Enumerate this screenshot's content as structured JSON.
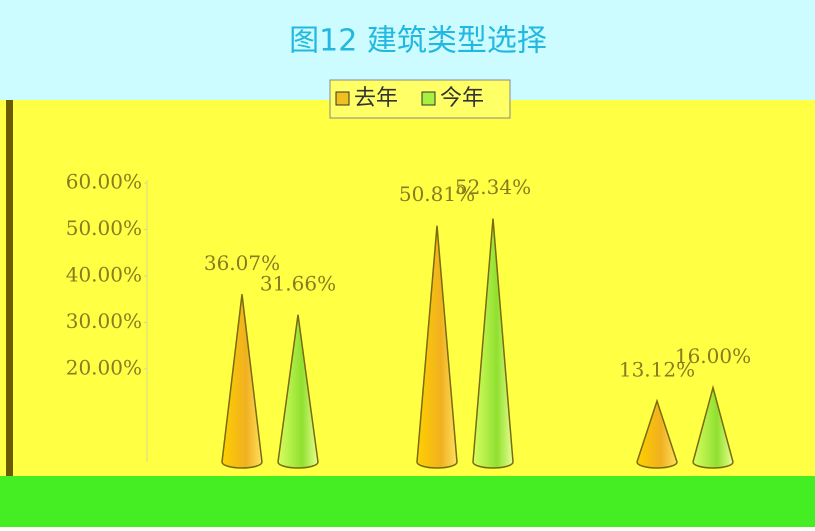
{
  "chart_data": {
    "type": "cone",
    "title": "图12 建筑类型选择",
    "categories": [
      null,
      null,
      null
    ],
    "series": [
      {
        "name": "去年",
        "color": "#f0c020",
        "values": [
          36.07,
          50.81,
          13.12
        ],
        "value_labels": [
          "36.07%",
          "50.81%",
          "13.12%"
        ]
      },
      {
        "name": "今年",
        "color": "#a8f040",
        "values": [
          31.66,
          52.34,
          16.0
        ],
        "value_labels": [
          "31.66%",
          "52.34%",
          "16.00%"
        ]
      }
    ],
    "ylim": [
      0,
      60
    ],
    "yticks": [
      {
        "value": 20,
        "label": "20.00%"
      },
      {
        "value": 30,
        "label": "30.00%"
      },
      {
        "value": 40,
        "label": "40.00%"
      },
      {
        "value": 50,
        "label": "50.00%"
      },
      {
        "value": 60,
        "label": "60.00%"
      }
    ]
  }
}
